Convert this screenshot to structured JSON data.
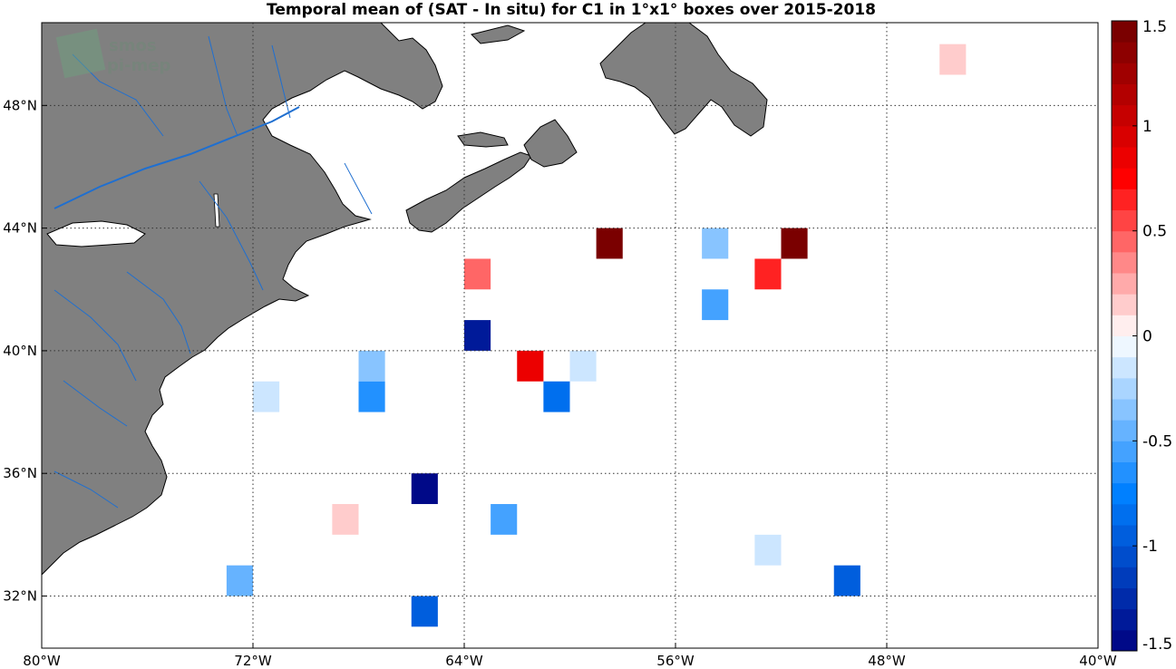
{
  "title": "Temporal mean of (SAT - In situ) for C1 in 1°x1° boxes over 2015-2018",
  "watermark": {
    "line1": "smos",
    "line2": "pi-mep",
    "icon": "pimep-logo-icon"
  },
  "map": {
    "lon_range": [
      -80,
      -40
    ],
    "lat_range": [
      30.3,
      50.7
    ],
    "land_color": "#808080",
    "river_color": "#1f6fd0",
    "grid": true,
    "lon_ticks": [
      {
        "value": -80,
        "label": "80°W"
      },
      {
        "value": -72,
        "label": "72°W"
      },
      {
        "value": -64,
        "label": "64°W"
      },
      {
        "value": -56,
        "label": "56°W"
      },
      {
        "value": -48,
        "label": "48°W"
      },
      {
        "value": -40,
        "label": "40°W"
      }
    ],
    "lat_ticks": [
      {
        "value": 32,
        "label": "32°N"
      },
      {
        "value": 36,
        "label": "36°N"
      },
      {
        "value": 40,
        "label": "40°N"
      },
      {
        "value": 44,
        "label": "44°N"
      },
      {
        "value": 48,
        "label": "48°N"
      }
    ]
  },
  "colorbar": {
    "range": [
      -1.5,
      1.5
    ],
    "levels": 30,
    "ticks": [
      {
        "value": 1.5,
        "label": "1.5"
      },
      {
        "value": 1,
        "label": "1"
      },
      {
        "value": 0.5,
        "label": "0.5"
      },
      {
        "value": 0,
        "label": "0"
      },
      {
        "value": -0.5,
        "label": "-0.5"
      },
      {
        "value": -1,
        "label": "-1"
      },
      {
        "value": -1.5,
        "label": "-1.5"
      }
    ]
  },
  "chart_data": {
    "type": "heatmap",
    "title": "Temporal mean of (SAT - In situ) for C1 in 1°x1° boxes over 2015-2018",
    "cell_size_deg": 1,
    "cells": [
      {
        "lon": -45.5,
        "lat": 49.5,
        "value": 0.1
      },
      {
        "lon": -58.5,
        "lat": 43.5,
        "value": 1.5
      },
      {
        "lon": -54.5,
        "lat": 43.5,
        "value": -0.4
      },
      {
        "lon": -51.5,
        "lat": 43.5,
        "value": 1.5
      },
      {
        "lon": -63.5,
        "lat": 42.5,
        "value": 0.4
      },
      {
        "lon": -52.5,
        "lat": 42.5,
        "value": 0.6
      },
      {
        "lon": -54.5,
        "lat": 41.5,
        "value": -0.6
      },
      {
        "lon": -63.5,
        "lat": 40.5,
        "value": -1.4
      },
      {
        "lon": -61.5,
        "lat": 39.5,
        "value": 0.8
      },
      {
        "lon": -59.5,
        "lat": 39.5,
        "value": -0.2
      },
      {
        "lon": -67.5,
        "lat": 39.5,
        "value": -0.3
      },
      {
        "lon": -71.5,
        "lat": 38.5,
        "value": -0.1
      },
      {
        "lon": -67.5,
        "lat": 38.5,
        "value": -0.7
      },
      {
        "lon": -60.5,
        "lat": 38.5,
        "value": -0.8
      },
      {
        "lon": -65.5,
        "lat": 35.5,
        "value": -1.5
      },
      {
        "lon": -68.5,
        "lat": 34.5,
        "value": 0.1
      },
      {
        "lon": -62.5,
        "lat": 34.5,
        "value": -0.6
      },
      {
        "lon": -52.5,
        "lat": 33.5,
        "value": -0.2
      },
      {
        "lon": -72.5,
        "lat": 32.5,
        "value": -0.5
      },
      {
        "lon": -49.5,
        "lat": 32.5,
        "value": -1.0
      },
      {
        "lon": -65.5,
        "lat": 31.5,
        "value": -1.0
      }
    ]
  }
}
